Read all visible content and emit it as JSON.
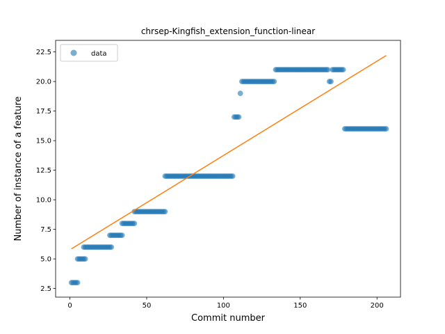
{
  "chart_data": {
    "type": "scatter",
    "title": "chrsep-Kingfish_extension_function-linear",
    "xlabel": "Commit number",
    "ylabel": "Number of instance of a feature",
    "xlim": [
      -9.3,
      215.3
    ],
    "ylim": [
      1.77,
      23.48
    ],
    "xticks": [
      0,
      50,
      100,
      150,
      200
    ],
    "yticks": [
      2.5,
      5.0,
      7.5,
      10.0,
      12.5,
      15.0,
      17.5,
      20.0,
      22.5
    ],
    "xtick_labels": [
      "0",
      "50",
      "100",
      "150",
      "200"
    ],
    "ytick_labels": [
      "2.5",
      "5.0",
      "7.5",
      "10.0",
      "12.5",
      "15.0",
      "17.5",
      "20.0",
      "22.5"
    ],
    "legend": {
      "position": "upper-left",
      "entries": [
        "data"
      ]
    },
    "colors": {
      "data": "#1f77b4",
      "fit": "#ff7f0e"
    },
    "series": [
      {
        "name": "data",
        "kind": "scatter",
        "segments": [
          {
            "x_start": 1,
            "x_end": 5,
            "y": 3
          },
          {
            "x_start": 5,
            "x_end": 10,
            "y": 5
          },
          {
            "x_start": 9,
            "x_end": 27,
            "y": 6
          },
          {
            "x_start": 26,
            "x_end": 34,
            "y": 7
          },
          {
            "x_start": 34,
            "x_end": 42,
            "y": 8
          },
          {
            "x_start": 42,
            "x_end": 62,
            "y": 9
          },
          {
            "x_start": 62,
            "x_end": 106,
            "y": 12
          },
          {
            "x_start": 107,
            "x_end": 110,
            "y": 17
          },
          {
            "x_start": 111,
            "x_end": 111,
            "y": 19
          },
          {
            "x_start": 112,
            "x_end": 133,
            "y": 20
          },
          {
            "x_start": 134,
            "x_end": 168,
            "y": 21
          },
          {
            "x_start": 169,
            "x_end": 170,
            "y": 20
          },
          {
            "x_start": 171,
            "x_end": 178,
            "y": 21
          },
          {
            "x_start": 179,
            "x_end": 206,
            "y": 16
          }
        ]
      },
      {
        "kind": "line",
        "x": [
          1,
          206
        ],
        "y": [
          5.85,
          22.2
        ]
      }
    ]
  }
}
